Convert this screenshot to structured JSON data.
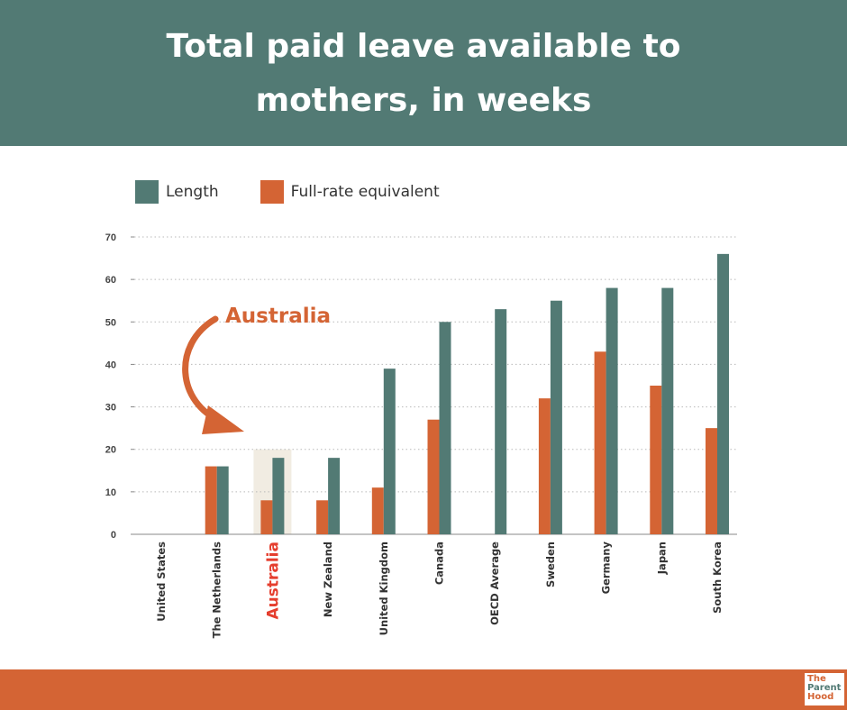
{
  "title": "Total paid leave available to mothers, in weeks",
  "colors": {
    "header": "#527a74",
    "length": "#527a74",
    "fullrate": "#d46434",
    "highlight_text": "#e53e2e",
    "callout": "#d46434"
  },
  "chart_data": {
    "type": "bar",
    "title": "Total paid leave available to mothers, in weeks",
    "categories": [
      "United States",
      "The Netherlands",
      "Australia",
      "New Zealand",
      "United Kingdom",
      "Canada",
      "OECD Average",
      "Sweden",
      "Germany",
      "Japan",
      "South Korea"
    ],
    "series": [
      {
        "name": "Length",
        "color": "#527a74",
        "values": [
          0,
          16,
          18,
          18,
          39,
          50,
          53,
          55,
          58,
          58,
          66
        ]
      },
      {
        "name": "Full-rate equivalent",
        "color": "#d46434",
        "values": [
          0,
          16,
          8,
          8,
          11,
          27,
          null,
          32,
          43,
          35,
          25
        ]
      }
    ],
    "ylim": [
      0,
      70
    ],
    "yticks": [
      0,
      10,
      20,
      30,
      40,
      50,
      60,
      70
    ],
    "xlabel": "",
    "ylabel": "",
    "highlight_category": "Australia",
    "annotation": "Australia",
    "grid": "dotted horizontal",
    "legend_position": "top-left"
  },
  "logo": {
    "lines": [
      "The",
      "Parent",
      "Hood"
    ]
  }
}
